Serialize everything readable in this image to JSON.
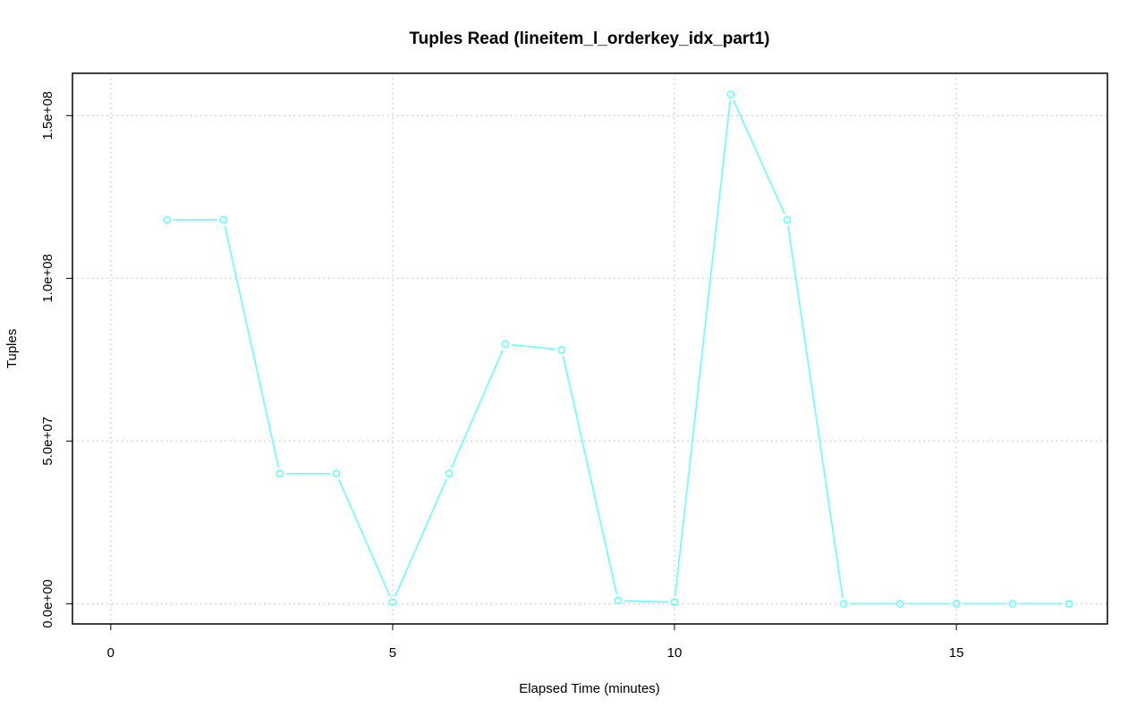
{
  "chart_data": {
    "type": "line",
    "title": "Tuples Read (lineitem_l_orderkey_idx_part1)",
    "xlabel": "Elapsed Time (minutes)",
    "ylabel": "Tuples",
    "xlim": [
      -0.68,
      17.68
    ],
    "ylim": [
      -6200000,
      163000000
    ],
    "x_ticks": [
      0,
      5,
      10,
      15
    ],
    "x_tick_labels": [
      "0",
      "5",
      "10",
      "15"
    ],
    "y_ticks": [
      0,
      50000000,
      100000000,
      150000000
    ],
    "y_tick_labels": [
      "0.0e+00",
      "5.0e+07",
      "1.0e+08",
      "1.5e+08"
    ],
    "grid": true,
    "series": [
      {
        "color": "#66ffff",
        "marker": "open-circle",
        "x": [
          1,
          2,
          3,
          4,
          5,
          6,
          7,
          8,
          9,
          10,
          11,
          12,
          13,
          14,
          15,
          16,
          17
        ],
        "values": [
          118000000,
          118000000,
          40000000,
          40000000,
          500000,
          40000000,
          79800000,
          78000000,
          1000000,
          500000,
          156500000,
          118000000,
          0,
          0,
          0,
          0,
          0
        ]
      }
    ]
  }
}
